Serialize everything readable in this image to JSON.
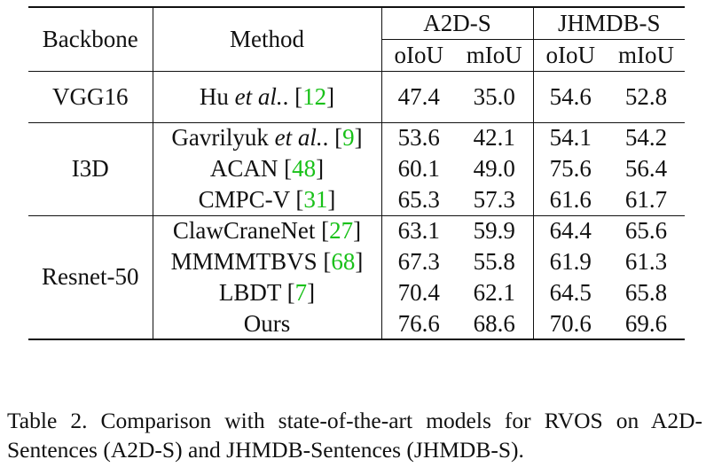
{
  "table": {
    "header": {
      "backbone": "Backbone",
      "method": "Method",
      "groups": [
        "A2D-S",
        "JHMDB-S"
      ],
      "metrics": [
        "oIoU",
        "mIoU",
        "oIoU",
        "mIoU"
      ]
    },
    "sections": [
      {
        "backbone": "VGG16",
        "rows": [
          {
            "method": "Hu",
            "method_em": "et al.",
            "method_rest": ".",
            "cite": "12",
            "values": [
              "47.4",
              "35.0",
              "54.6",
              "52.8"
            ]
          }
        ]
      },
      {
        "backbone": "I3D",
        "rows": [
          {
            "method": "Gavrilyuk",
            "method_em": "et al.",
            "method_rest": ".",
            "cite": "9",
            "values": [
              "53.6",
              "42.1",
              "54.1",
              "54.2"
            ]
          },
          {
            "method": "ACAN",
            "cite": "48",
            "values": [
              "60.1",
              "49.0",
              "75.6",
              "56.4"
            ]
          },
          {
            "method": "CMPC-V",
            "cite": "31",
            "values": [
              "65.3",
              "57.3",
              "61.6",
              "61.7"
            ]
          }
        ]
      },
      {
        "backbone": "Resnet-50",
        "rows": [
          {
            "method": "ClawCraneNet",
            "cite": "27",
            "values": [
              "63.1",
              "59.9",
              "64.4",
              "65.6"
            ]
          },
          {
            "method": "MMMMTBVS",
            "cite": "68",
            "values": [
              "67.3",
              "55.8",
              "61.9",
              "61.3"
            ]
          },
          {
            "method": "LBDT",
            "cite": "7",
            "values": [
              "70.4",
              "62.1",
              "64.5",
              "65.8"
            ]
          },
          {
            "method": "Ours",
            "bold": true,
            "values": [
              "76.6",
              "68.6",
              "70.6",
              "69.6"
            ]
          }
        ]
      }
    ]
  },
  "caption": "Table 2. Comparison with state-of-the-art models for RVOS on A2D-Sentences (A2D-S) and JHMDB-Sentences (JHMDB-S).",
  "colors": {
    "citation": "#19c119",
    "text": "#111111"
  }
}
